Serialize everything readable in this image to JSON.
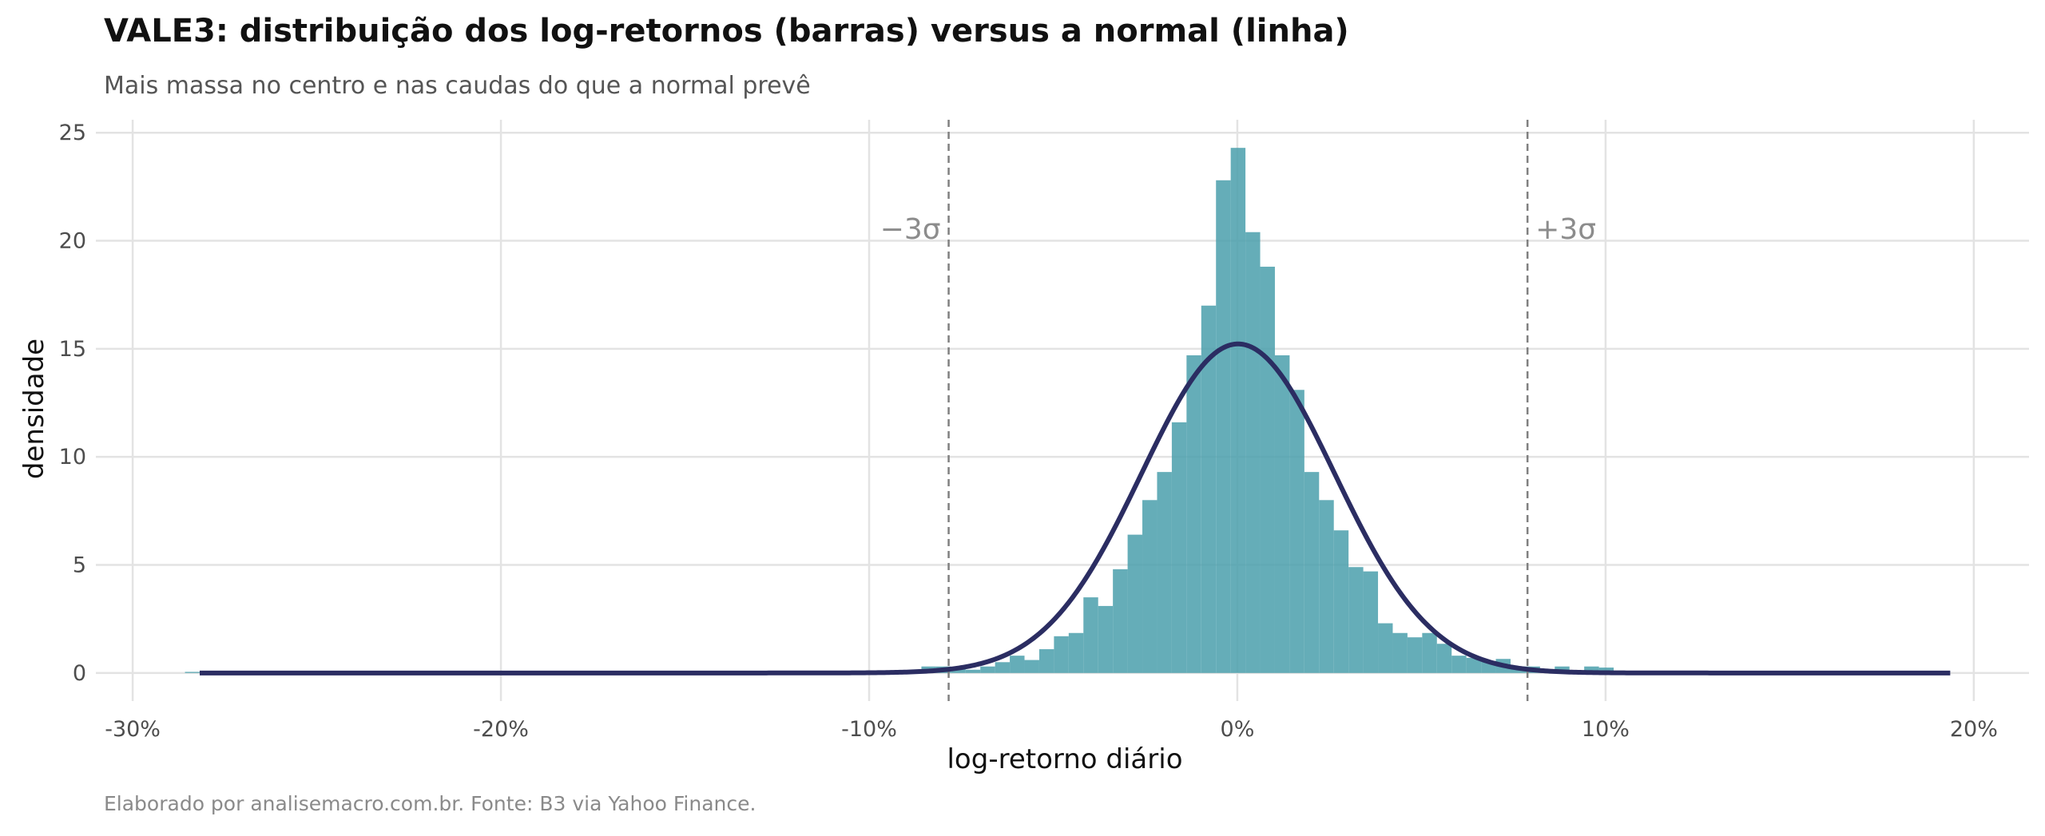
{
  "title": "VALE3: distribuição dos log-retornos (barras) versus a normal (linha)",
  "subtitle": "Mais massa no centro e nas caudas do que a normal prevê",
  "caption": "Elaborado por analisemacro.com.br. Fonte: B3 via Yahoo Finance.",
  "colors": {
    "bars": "#4a9fac",
    "normal_line": "#2b2d62",
    "reference_lines": "#808080",
    "grid": "#e3e3e3"
  },
  "chart_data": {
    "type": "bar",
    "xlabel": "log-retorno diário",
    "ylabel": "densidade",
    "xlim": [
      -0.31,
      0.215
    ],
    "ylim": [
      -1.3,
      25.6
    ],
    "grid": true,
    "x_ticks": [
      -0.3,
      -0.2,
      -0.1,
      0.0,
      0.1,
      0.2
    ],
    "x_tick_labels": [
      "-30%",
      "-20%",
      "-10%",
      "0%",
      "10%",
      "20%"
    ],
    "y_ticks": [
      0,
      5,
      10,
      15,
      20,
      25
    ],
    "y_tick_labels": [
      "0",
      "5",
      "10",
      "15",
      "20",
      "25"
    ],
    "bin_width": 0.004,
    "bin_centers": [
      -0.2838,
      -0.0998,
      -0.0958,
      -0.0918,
      -0.0878,
      -0.0838,
      -0.0798,
      -0.0758,
      -0.0718,
      -0.0678,
      -0.0638,
      -0.0598,
      -0.0558,
      -0.0518,
      -0.0478,
      -0.0438,
      -0.0398,
      -0.0358,
      -0.0318,
      -0.0278,
      -0.0238,
      -0.0198,
      -0.0158,
      -0.0118,
      -0.0078,
      -0.0038,
      0.0002,
      0.0042,
      0.0082,
      0.0122,
      0.0162,
      0.0202,
      0.0242,
      0.0282,
      0.0322,
      0.0362,
      0.0402,
      0.0442,
      0.0482,
      0.0522,
      0.0562,
      0.0602,
      0.0642,
      0.0682,
      0.0722,
      0.0762,
      0.0802,
      0.0842,
      0.0882,
      0.0922,
      0.0962,
      0.1002,
      0.1042
    ],
    "density": [
      0.05,
      0.05,
      0.1,
      0.05,
      0.1,
      0.3,
      0.3,
      0.25,
      0.15,
      0.3,
      0.5,
      0.8,
      0.6,
      1.1,
      1.7,
      1.85,
      3.5,
      3.1,
      4.8,
      6.4,
      8.0,
      9.3,
      11.6,
      14.7,
      17.0,
      22.8,
      24.3,
      20.4,
      18.8,
      14.7,
      13.1,
      9.3,
      8.0,
      6.6,
      4.9,
      4.7,
      2.3,
      1.85,
      1.65,
      1.85,
      1.35,
      0.8,
      0.7,
      0.55,
      0.65,
      0.3,
      0.3,
      0.15,
      0.3,
      0.1,
      0.3,
      0.25,
      0.1
    ],
    "series": [
      {
        "type": "histogram",
        "values_key": "density"
      },
      {
        "type": "line",
        "distribution": "normal",
        "mean": 0.0002,
        "sd": 0.0262,
        "x_range": [
          -0.2818,
          0.1936
        ]
      }
    ],
    "reference_lines": [
      {
        "x": -0.0784,
        "label": "−3σ"
      },
      {
        "x": 0.0788,
        "label": "+3σ"
      }
    ]
  }
}
